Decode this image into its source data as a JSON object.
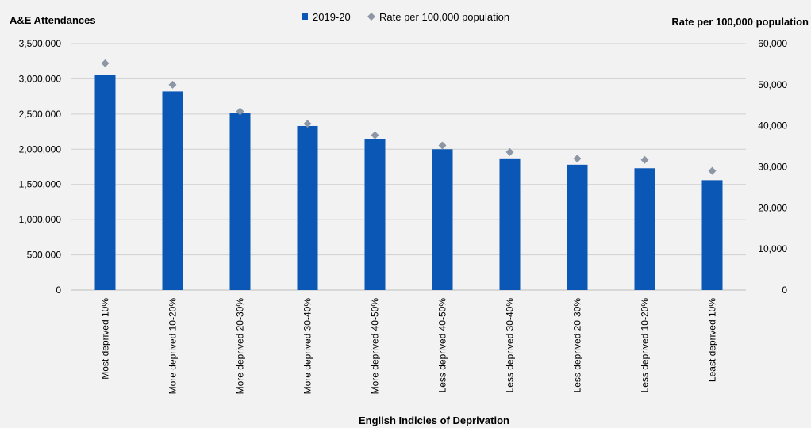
{
  "chart_data": {
    "type": "bar",
    "categories": [
      "Most deprived 10%",
      "More deprived 10-20%",
      "More deprived 20-30%",
      "More deprived 30-40%",
      "More deprived 40-50%",
      "Less deprived 40-50%",
      "Less deprived 30-40%",
      "Less deprived 20-30%",
      "Less deprived 10-20%",
      "Least deprived 10%"
    ],
    "series": [
      {
        "name": "2019-20",
        "type": "bar",
        "axis": "left",
        "color": "#0a57b5",
        "values": [
          3060000,
          2820000,
          2510000,
          2330000,
          2140000,
          2000000,
          1870000,
          1780000,
          1730000,
          1560000
        ]
      },
      {
        "name": "Rate per 100,000 population",
        "type": "scatter",
        "marker": "diamond",
        "axis": "right",
        "color": "#8c96a5",
        "values": [
          55200,
          50000,
          43500,
          40500,
          37700,
          35200,
          33600,
          32000,
          31700,
          29000
        ]
      }
    ],
    "ylabel": "A&E Attendances",
    "y2label": "Rate per 100,000 population",
    "xlabel": "English Indicies of Deprivation",
    "ylim": [
      0,
      3500000
    ],
    "y2lim": [
      0,
      60000
    ],
    "yticks": [
      "0",
      "500,000",
      "1,000,000",
      "1,500,000",
      "2,000,000",
      "2,500,000",
      "3,000,000",
      "3,500,000"
    ],
    "y2ticks": [
      "0",
      "10,000",
      "20,000",
      "30,000",
      "40,000",
      "50,000",
      "60,000"
    ],
    "grid": true,
    "legend": "top-center"
  }
}
